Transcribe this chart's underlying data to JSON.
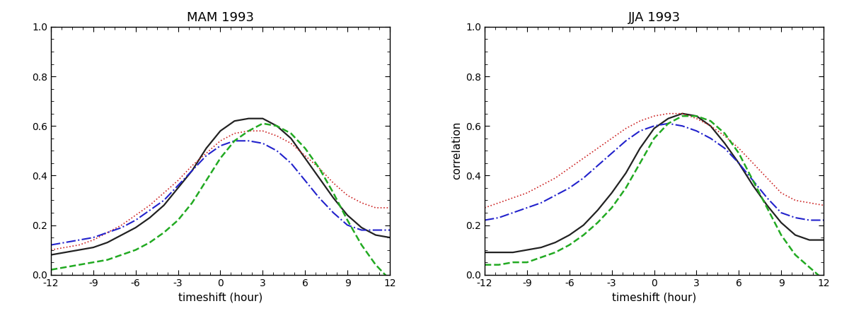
{
  "title_left": "MAM 1993",
  "title_right": "JJA 1993",
  "xlabel": "timeshift (hour)",
  "ylabel": "correlation",
  "xlim": [
    -12,
    12
  ],
  "ylim": [
    0.0,
    1.0
  ],
  "xticks": [
    -12,
    -9,
    -6,
    -3,
    0,
    3,
    6,
    9,
    12
  ],
  "yticks": [
    0.0,
    0.2,
    0.4,
    0.6,
    0.8,
    1.0
  ],
  "x": [
    -12,
    -11,
    -10,
    -9,
    -8,
    -7,
    -6,
    -5,
    -4,
    -3,
    -2,
    -1,
    0,
    1,
    2,
    3,
    4,
    5,
    6,
    7,
    8,
    9,
    10,
    11,
    12
  ],
  "mam_black": [
    0.08,
    0.09,
    0.1,
    0.11,
    0.13,
    0.16,
    0.19,
    0.23,
    0.28,
    0.35,
    0.42,
    0.51,
    0.58,
    0.62,
    0.63,
    0.63,
    0.6,
    0.55,
    0.47,
    0.39,
    0.31,
    0.24,
    0.19,
    0.16,
    0.15
  ],
  "mam_red": [
    0.1,
    0.11,
    0.12,
    0.14,
    0.17,
    0.2,
    0.24,
    0.28,
    0.33,
    0.38,
    0.44,
    0.49,
    0.54,
    0.57,
    0.58,
    0.58,
    0.56,
    0.53,
    0.48,
    0.43,
    0.37,
    0.32,
    0.29,
    0.27,
    0.27
  ],
  "mam_blue": [
    0.12,
    0.13,
    0.14,
    0.15,
    0.17,
    0.19,
    0.22,
    0.26,
    0.3,
    0.36,
    0.42,
    0.48,
    0.52,
    0.54,
    0.54,
    0.53,
    0.5,
    0.45,
    0.38,
    0.31,
    0.25,
    0.2,
    0.18,
    0.18,
    0.18
  ],
  "mam_green": [
    0.02,
    0.03,
    0.04,
    0.05,
    0.06,
    0.08,
    0.1,
    0.13,
    0.17,
    0.22,
    0.29,
    0.38,
    0.47,
    0.54,
    0.58,
    0.61,
    0.6,
    0.57,
    0.51,
    0.43,
    0.33,
    0.22,
    0.12,
    0.04,
    -0.02
  ],
  "jja_black": [
    0.09,
    0.09,
    0.09,
    0.1,
    0.11,
    0.13,
    0.16,
    0.2,
    0.26,
    0.33,
    0.41,
    0.51,
    0.59,
    0.63,
    0.65,
    0.64,
    0.6,
    0.53,
    0.45,
    0.36,
    0.28,
    0.21,
    0.16,
    0.14,
    0.14
  ],
  "jja_red": [
    0.27,
    0.29,
    0.31,
    0.33,
    0.36,
    0.39,
    0.43,
    0.47,
    0.51,
    0.55,
    0.59,
    0.62,
    0.64,
    0.65,
    0.65,
    0.63,
    0.6,
    0.56,
    0.51,
    0.45,
    0.39,
    0.33,
    0.3,
    0.29,
    0.28
  ],
  "jja_blue": [
    0.22,
    0.23,
    0.25,
    0.27,
    0.29,
    0.32,
    0.35,
    0.39,
    0.44,
    0.49,
    0.54,
    0.58,
    0.6,
    0.61,
    0.6,
    0.58,
    0.55,
    0.51,
    0.45,
    0.38,
    0.31,
    0.25,
    0.23,
    0.22,
    0.22
  ],
  "jja_green": [
    0.04,
    0.04,
    0.05,
    0.05,
    0.07,
    0.09,
    0.12,
    0.16,
    0.21,
    0.27,
    0.35,
    0.45,
    0.55,
    0.61,
    0.64,
    0.64,
    0.62,
    0.57,
    0.49,
    0.38,
    0.27,
    0.16,
    0.08,
    0.03,
    -0.02
  ],
  "line_black_style": {
    "color": "#222222",
    "lw": 1.6,
    "ls": "-"
  },
  "line_red_style": {
    "color": "#cc2222",
    "lw": 1.2,
    "ls": ":"
  },
  "line_blue_style": {
    "color": "#2222cc",
    "lw": 1.5,
    "ls": "-."
  },
  "line_green_style": {
    "color": "#22aa22",
    "lw": 1.8,
    "ls": "--"
  },
  "title_fontsize": 13,
  "label_fontsize": 11,
  "tick_fontsize": 10,
  "background_color": "#ffffff",
  "fig_width": 12.0,
  "fig_height": 4.74
}
